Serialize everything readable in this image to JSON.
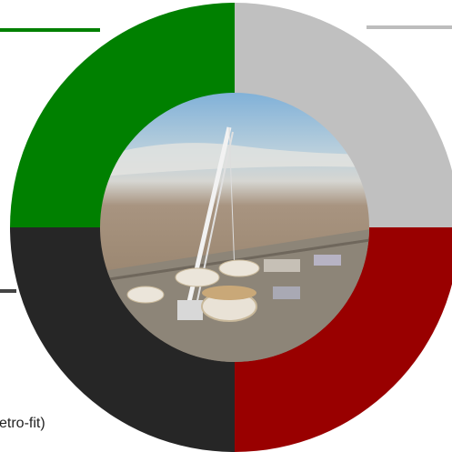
{
  "callouts": [
    {
      "text": "etro-fit)"
    }
  ]
}
